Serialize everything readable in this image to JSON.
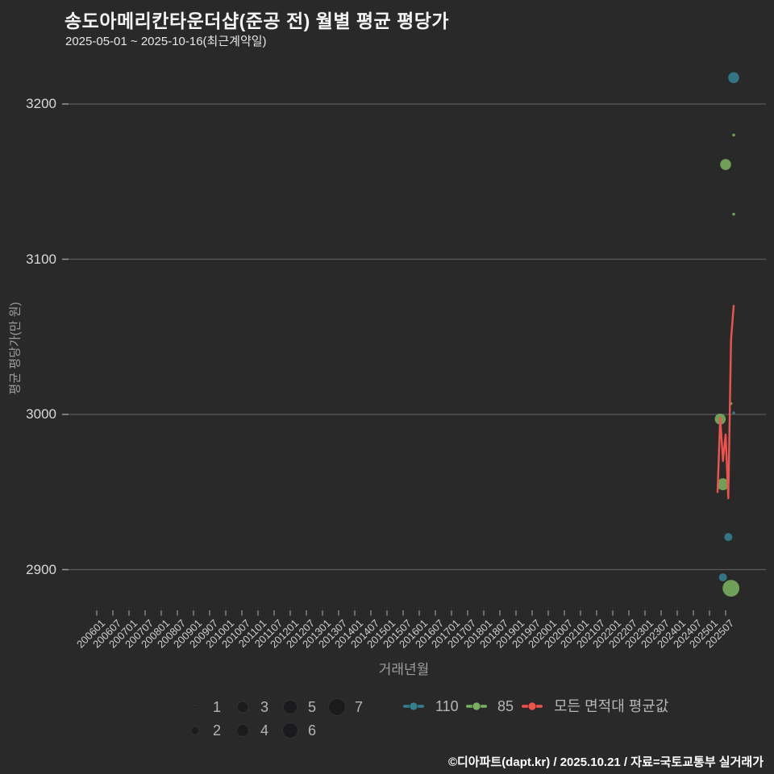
{
  "header": {
    "title": "송도아메리칸타운더샵(준공 전) 월별 평균 평당가",
    "subtitle": "2025-05-01 ~ 2025-10-16(최근계약일)"
  },
  "footer": {
    "credit": "©디아파트(dapt.kr) / 2025.10.21 / 자료=국토교통부 실거래가"
  },
  "colors": {
    "background": "#292929",
    "grid": "#5a5a5a",
    "tick": "#9a9a9a",
    "teal": "#35808f",
    "green": "#79af60",
    "red": "#ef5350",
    "size_circle": "#1b1b1e",
    "legend_text": "#b5b5b5"
  },
  "chart_data": {
    "type": "scatter",
    "title": "송도아메리칸타운더샵(준공 전) 월별 평균 평당가",
    "xlabel": "거래년월",
    "ylabel": "평균 평당가(만 원)",
    "grid": true,
    "legend_position": "bottom",
    "y_ticks": [
      3200,
      3100,
      3000,
      2900
    ],
    "ylim": [
      2872,
      3223
    ],
    "x_tick_labels": [
      "200601",
      "200607",
      "200701",
      "200707",
      "200801",
      "200807",
      "200901",
      "200907",
      "201001",
      "201007",
      "201101",
      "201107",
      "201201",
      "201207",
      "201301",
      "201307",
      "201401",
      "201407",
      "201501",
      "201507",
      "201601",
      "201607",
      "201701",
      "201707",
      "201801",
      "201807",
      "201901",
      "201907",
      "202001",
      "202007",
      "202101",
      "202107",
      "202201",
      "202207",
      "202301",
      "202307",
      "202401",
      "202407",
      "202501",
      "202507"
    ],
    "size_scale_radius_px": {
      "1": 1.8,
      "2": 5,
      "3": 6.8,
      "4": 7.4,
      "5": 8.7,
      "6": 9.4,
      "7": 10.4
    },
    "bubble_series": [
      {
        "name": "110",
        "color_key": "teal",
        "points": [
          {
            "month": "202510",
            "value": 3217,
            "count": 3
          },
          {
            "month": "202510",
            "value": 3001,
            "count": 1
          },
          {
            "month": "202508",
            "value": 2921,
            "count": 2
          },
          {
            "month": "202506",
            "value": 2895,
            "count": 2
          }
        ]
      },
      {
        "name": "85",
        "color_key": "green",
        "points": [
          {
            "month": "202510",
            "value": 3180,
            "count": 1
          },
          {
            "month": "202507",
            "value": 3161,
            "count": 3
          },
          {
            "month": "202510",
            "value": 3129,
            "count": 1
          },
          {
            "month": "202509",
            "value": 3007,
            "count": 1
          },
          {
            "month": "202505",
            "value": 2997,
            "count": 3
          },
          {
            "month": "202506",
            "value": 2955,
            "count": 4
          },
          {
            "month": "202509",
            "value": 2888,
            "count": 7
          }
        ]
      }
    ],
    "line_series": {
      "name": "모든 면적대 평균값",
      "color_key": "red",
      "points": [
        {
          "month": "202504",
          "value": 2950
        },
        {
          "month": "202505",
          "value": 2998
        },
        {
          "month": "202506",
          "value": 2970
        },
        {
          "month": "202507",
          "value": 2987
        },
        {
          "month": "202508",
          "value": 2946
        },
        {
          "month": "202509",
          "value": 3048
        },
        {
          "month": "202510",
          "value": 3070
        }
      ]
    }
  },
  "legend": {
    "size_rows": [
      [
        {
          "count": 1,
          "label": "1"
        },
        {
          "count": 3,
          "label": "3"
        },
        {
          "count": 5,
          "label": "5"
        },
        {
          "count": 7,
          "label": "7"
        }
      ],
      [
        {
          "count": 2,
          "label": "2"
        },
        {
          "count": 4,
          "label": "4"
        },
        {
          "count": 6,
          "label": "6"
        }
      ]
    ],
    "series_items": [
      {
        "label": "110",
        "color_key": "teal"
      },
      {
        "label": "85",
        "color_key": "green"
      },
      {
        "label": "모든 면적대 평균값",
        "color_key": "red"
      }
    ]
  }
}
